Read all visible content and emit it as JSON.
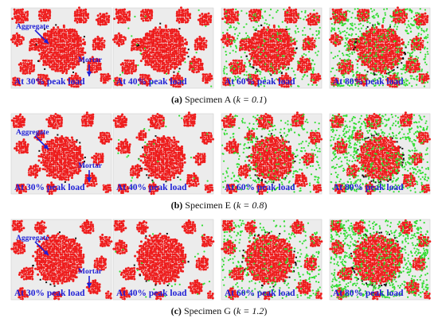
{
  "colors": {
    "aggregate": "#ee1c1c",
    "aggregate_dark": "#b30000",
    "mortar_background": "#ececec",
    "crack_green": "#33dd33",
    "crack_black": "#111111",
    "annotation_blue": "#1f1fd6"
  },
  "annotations": {
    "aggregate": "Aggregate",
    "mortar": "Mortar"
  },
  "stage_labels": [
    "At 30% peak load",
    "At 40% peak load",
    "At 60% peak load",
    "At 80% peak load"
  ],
  "stage_crack_fraction": [
    0.0,
    0.03,
    0.35,
    0.75
  ],
  "rows": [
    {
      "letter": "(a)",
      "specimen": "Specimen A",
      "k_text": "k = 0.1",
      "crack_fraction_multiplier": 1.0
    },
    {
      "letter": "(b)",
      "specimen": "Specimen E",
      "k_text": "k = 0.8",
      "crack_fraction_multiplier": 1.15
    },
    {
      "letter": "(c)",
      "specimen": "Specimen G",
      "k_text": "k = 1.2",
      "crack_fraction_multiplier": 1.25
    }
  ]
}
